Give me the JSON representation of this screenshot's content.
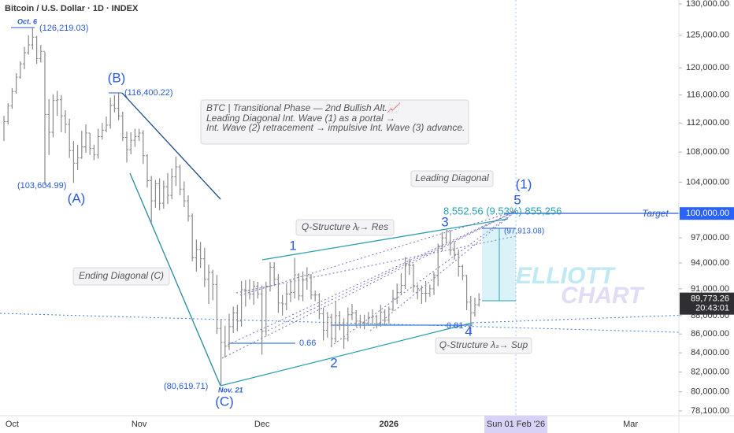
{
  "chart_data": {
    "type": "ohlc",
    "title": "Bitcoin / U.S. Dollar · 1D · INDEX",
    "color": "#8a8a8a",
    "log_scale": true,
    "categories": [
      null,
      null,
      "Oct",
      null,
      null,
      null,
      null,
      null,
      null,
      null,
      null,
      null,
      null,
      null,
      null,
      null,
      null,
      null,
      null,
      null,
      null,
      null,
      null,
      null,
      null,
      null,
      null,
      null,
      null,
      null,
      null,
      null,
      null,
      "Nov",
      null,
      null,
      null,
      null,
      null,
      null,
      null,
      null,
      null,
      null,
      null,
      null,
      null,
      null,
      null,
      null,
      null,
      null,
      null,
      null,
      null,
      null,
      null,
      null,
      null,
      null,
      null,
      null,
      null,
      "Dec",
      null,
      null,
      null,
      null,
      null,
      null,
      null,
      null,
      null,
      null,
      null,
      null,
      null,
      null,
      null,
      null,
      null,
      null,
      null,
      null,
      null,
      null,
      null,
      null,
      null,
      null,
      null,
      null,
      null,
      null,
      "2026",
      null,
      null,
      null,
      null,
      null,
      null,
      null,
      null,
      null,
      null,
      null,
      null,
      null,
      null,
      null,
      null,
      null,
      null,
      null,
      null,
      null,
      null,
      null,
      null,
      null,
      null,
      null,
      null,
      null,
      null,
      "Sun 01 Feb '26",
      null,
      null,
      null,
      null,
      null,
      null,
      null,
      null,
      null,
      null,
      null,
      null,
      null,
      null,
      null,
      null,
      null,
      null,
      null,
      null,
      null,
      null,
      null,
      null,
      null,
      null,
      null,
      "Mar",
      null,
      null,
      null,
      null,
      null,
      null,
      null,
      null,
      null,
      null,
      null
    ],
    "close": [
      112200,
      114400,
      116500,
      118600,
      120600,
      122300,
      123500,
      124700,
      121400,
      122500,
      113200,
      110700,
      115200,
      115300,
      113000,
      111800,
      108200,
      106500,
      107200,
      108700,
      110600,
      108500,
      107600,
      110100,
      111000,
      111700,
      114500,
      114100,
      113000,
      110000,
      108300,
      109600,
      110100,
      110600,
      107500,
      104200,
      101600,
      103800,
      101300,
      103400,
      102300,
      104700,
      106000,
      103100,
      101600,
      99700,
      94600,
      95600,
      94500,
      92100,
      92900,
      91500,
      86600,
      85100,
      84700,
      86800,
      88300,
      87400,
      90900,
      90800,
      90400,
      91300,
      90400,
      86300,
      91300,
      93500,
      92100,
      89400,
      89300,
      90400,
      90600,
      92600,
      90200,
      92000,
      92500,
      90300,
      90300,
      88200,
      86400,
      87800,
      85500,
      88000,
      87000,
      85500,
      88100,
      88300,
      87400,
      87300,
      87200,
      87800,
      87900,
      87100,
      88400,
      87500,
      88700,
      89900,
      90600,
      91400,
      93800,
      93700,
      91300,
      91000,
      90500,
      90500,
      91000,
      92500,
      96000,
      97000,
      97900,
      95500,
      95000,
      93600,
      92500,
      89500,
      88300,
      89200,
      89773,
      null,
      null,
      null,
      null,
      null,
      null,
      null,
      null,
      null,
      null,
      null,
      null,
      null,
      null,
      null,
      null,
      null,
      null,
      null,
      null,
      null,
      null,
      null,
      null,
      null,
      null,
      null,
      null,
      null,
      null,
      null,
      null,
      null,
      null,
      null,
      null,
      null,
      null,
      null,
      null,
      null,
      null,
      null,
      null,
      null,
      null,
      null,
      null
    ],
    "high": [
      113000,
      114800,
      117000,
      119200,
      121000,
      123200,
      125000,
      126219,
      124900,
      123500,
      122400,
      115400,
      116100,
      116600,
      116000,
      113800,
      112600,
      109500,
      109000,
      110900,
      111800,
      110600,
      109000,
      111200,
      112000,
      112900,
      115600,
      116000,
      116400,
      113600,
      110800,
      110700,
      111200,
      111200,
      111000,
      107700,
      104800,
      104300,
      104500,
      104200,
      105200,
      105800,
      107400,
      106300,
      104100,
      102300,
      100000,
      96800,
      96500,
      95800,
      93800,
      93200,
      92600,
      87500,
      86900,
      88200,
      89000,
      89200,
      91900,
      92000,
      92100,
      91900,
      91800,
      91400,
      91800,
      94100,
      94100,
      92700,
      90300,
      91600,
      92100,
      94600,
      92800,
      93000,
      93500,
      92700,
      90800,
      90500,
      88900,
      88400,
      88200,
      89600,
      88500,
      87700,
      88900,
      89300,
      88600,
      88100,
      88100,
      88400,
      88700,
      88100,
      89200,
      88700,
      89000,
      90900,
      91600,
      92800,
      94700,
      94500,
      93900,
      91500,
      91400,
      91900,
      91500,
      92900,
      96300,
      97700,
      97913,
      97900,
      96500,
      95600,
      93800,
      92600,
      90200,
      90000,
      90500,
      null,
      null,
      null,
      null,
      null,
      null,
      null,
      null,
      null,
      null,
      null,
      null,
      null,
      null,
      null,
      null,
      null,
      null,
      null,
      null,
      null,
      null,
      null,
      null,
      null,
      null,
      null,
      null,
      null,
      null,
      null,
      null,
      null,
      null,
      null,
      null,
      null,
      null,
      null,
      null,
      null,
      null,
      null,
      null,
      null,
      null,
      null,
      null
    ],
    "low": [
      109500,
      111800,
      114000,
      116200,
      118400,
      119800,
      122000,
      122800,
      120600,
      120800,
      103604,
      107600,
      110000,
      113000,
      110700,
      110600,
      107200,
      103900,
      105600,
      107100,
      107900,
      107600,
      106900,
      107100,
      109700,
      110700,
      111200,
      113500,
      112400,
      109500,
      106600,
      107700,
      108700,
      109500,
      106400,
      103300,
      98900,
      100700,
      100400,
      100600,
      101200,
      101800,
      103500,
      102300,
      100800,
      99000,
      94200,
      93000,
      93400,
      91200,
      89300,
      89700,
      86000,
      80619,
      83500,
      84300,
      86100,
      86300,
      86800,
      89000,
      89800,
      89200,
      89900,
      83800,
      85800,
      90700,
      91300,
      88300,
      88000,
      88600,
      89500,
      89900,
      89700,
      89600,
      90900,
      89800,
      89600,
      87600,
      85300,
      85600,
      84600,
      85100,
      86400,
      84400,
      85200,
      87500,
      86800,
      86600,
      86500,
      86900,
      87000,
      86600,
      86800,
      87000,
      87100,
      88500,
      89300,
      90300,
      91000,
      92600,
      90600,
      89800,
      89300,
      89500,
      90100,
      90300,
      91300,
      95400,
      96300,
      94900,
      94400,
      92400,
      92000,
      88600,
      86100,
      87900,
      89000,
      null,
      null,
      null,
      null,
      null,
      null,
      null,
      null,
      null,
      null,
      null,
      null,
      null,
      null,
      null,
      null,
      null,
      null,
      null,
      null,
      null,
      null,
      null,
      null,
      null,
      null,
      null,
      null,
      null,
      null,
      null,
      null,
      null,
      null,
      null,
      null,
      null,
      null,
      null,
      null,
      null,
      null,
      null,
      null,
      null,
      null,
      null,
      null
    ],
    "ylim": [
      77640,
      130640
    ],
    "yticks": [
      {
        "value": 130000,
        "label": "130,000.00"
      },
      {
        "value": 125000,
        "label": "125,000.00"
      },
      {
        "value": 120000,
        "label": "120,000.00"
      },
      {
        "value": 116000,
        "label": "116,000.00"
      },
      {
        "value": 112000,
        "label": "112,000.00"
      },
      {
        "value": 108000,
        "label": "108,000.00"
      },
      {
        "value": 104000,
        "label": "104,000.00"
      },
      {
        "value": 100000,
        "label": "100,000.00"
      },
      {
        "value": 97000,
        "label": "97,000.00"
      },
      {
        "value": 94000,
        "label": "94,000.00"
      },
      {
        "value": 91000,
        "label": "91,000.00"
      },
      {
        "value": 88000,
        "label": "88,000.00"
      },
      {
        "value": 86000,
        "label": "86,000.00"
      },
      {
        "value": 84000,
        "label": "84,000.00"
      },
      {
        "value": 82000,
        "label": "82,000.00"
      },
      {
        "value": 80000,
        "label": "80,000.00"
      },
      {
        "value": 78100,
        "label": "78,100.00"
      }
    ],
    "target_price": {
      "value": 100000,
      "label": "100,000.00"
    },
    "last_price": {
      "value": 89773.26,
      "label": "89,773.26"
    },
    "countdown": "20:43:01",
    "annotations": [
      "Oct. 6",
      "(126,219.03)",
      "(103,604.99)",
      "(A)",
      "(B)",
      "(116,400.22)",
      "(80,619.71)",
      "Nov. 21",
      "(C)",
      "Ending Diagonal (C)",
      "BTC | Transitional Phase — 2nd Bullish Alt.📈",
      "Leading Diagonal Int. Wave (1) as a portal →",
      "Int. Wave (2) retracement → impulsive Int. Wave (3) advance.",
      "Leading Diagonal",
      "(1)",
      "5",
      "8,552.56 (9.53%) 855,256",
      "Target",
      "3",
      "(97,913.08)",
      "Q-Structure λᵣ→ Res",
      "1",
      "2",
      "4",
      "0.66",
      "0.81",
      "Q-Structure λₛ→ Sup",
      "ELLIOTT",
      "CHART"
    ]
  }
}
